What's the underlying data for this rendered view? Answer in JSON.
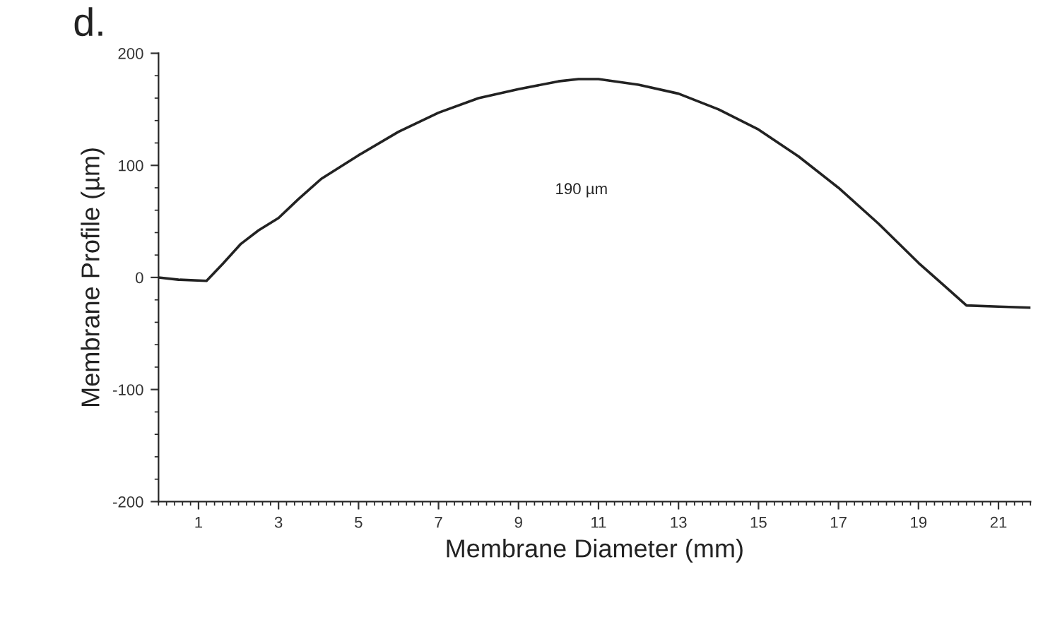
{
  "chart_data": {
    "type": "line",
    "title": "d.",
    "xlabel": "Membrane Diameter (mm)",
    "ylabel": "Membrane Profile (µm)",
    "annotations": [
      "190 µm"
    ],
    "series": [
      {
        "color": "#222222",
        "x": [
          0,
          0.5,
          1.2,
          1.6,
          2.06,
          2.5,
          3,
          3.5,
          4.07,
          5,
          6,
          7,
          8,
          9,
          10,
          10.5,
          11,
          12,
          13,
          14,
          15,
          16,
          17,
          18,
          19,
          19.6,
          20.2,
          21,
          21.8
        ],
        "values": [
          0,
          -2,
          -3,
          12,
          30,
          42,
          53,
          70,
          88,
          109,
          130,
          147,
          160,
          168,
          175,
          177,
          177,
          172,
          164,
          150,
          132,
          108,
          80,
          48,
          13,
          -6,
          -25,
          -26,
          -27
        ]
      }
    ],
    "xlim": [
      0,
      21.8
    ],
    "xticks": [
      1,
      3,
      5,
      7,
      9,
      11,
      13,
      15,
      17,
      19,
      21
    ],
    "ylim": [
      -200,
      200
    ],
    "yticks": [
      -200,
      -100,
      0,
      100,
      200
    ],
    "grid": false,
    "legend": false,
    "marker": "none",
    "line_style": "solid"
  }
}
